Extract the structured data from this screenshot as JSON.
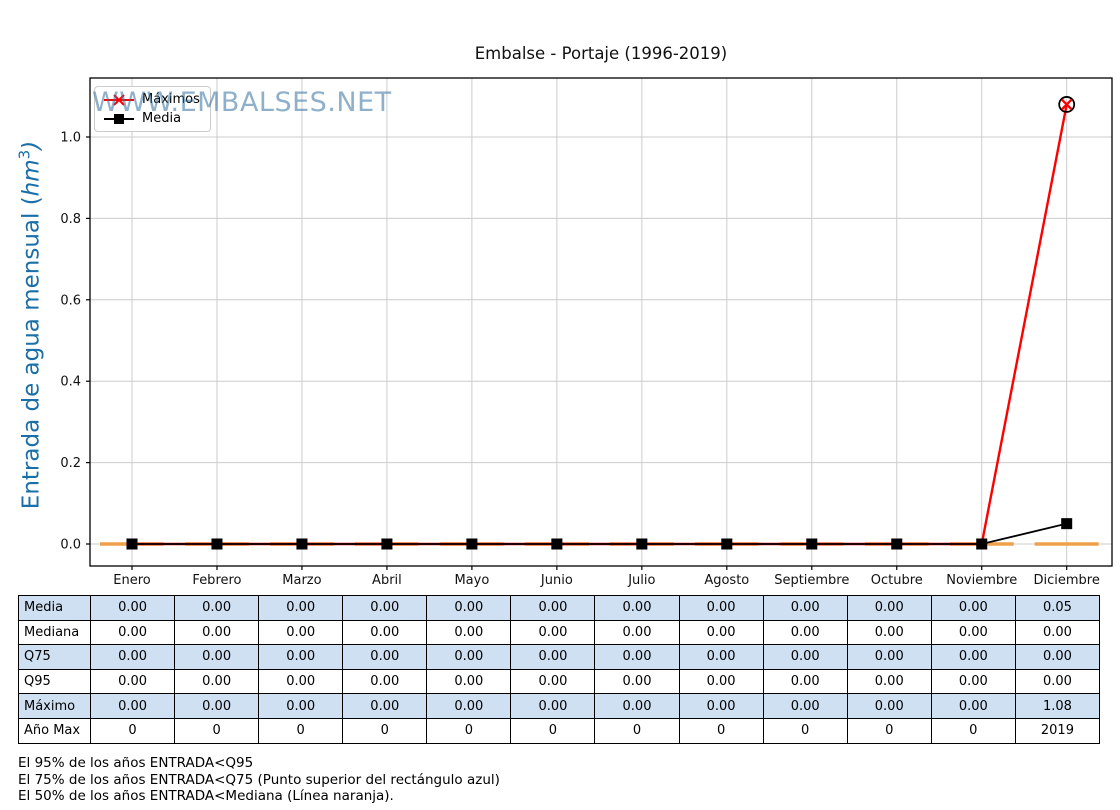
{
  "title": "Embalse - Portaje (1996-2019)",
  "watermark": "WWW.EMBALSES.NET",
  "ylabel_parts": {
    "open": "Entrada de agua mensual (",
    "unit": "hm",
    "sup": "3",
    "close": ")"
  },
  "chart_data": {
    "type": "line",
    "title": "Embalse - Portaje (1996-2019)",
    "xlabel": "",
    "ylabel": "Entrada de agua mensual (hm³)",
    "categories": [
      "Enero",
      "Febrero",
      "Marzo",
      "Abril",
      "Mayo",
      "Junio",
      "Julio",
      "Agosto",
      "Septiembre",
      "Octubre",
      "Noviembre",
      "Diciembre"
    ],
    "ytick_labels": [
      "0.0",
      "0.2",
      "0.4",
      "0.6",
      "0.8",
      "1.0"
    ],
    "yticks": [
      0.0,
      0.2,
      0.4,
      0.6,
      0.8,
      1.0
    ],
    "ylim": [
      -0.054,
      1.145
    ],
    "grid": true,
    "legend_position": "upper-left",
    "series": [
      {
        "name": "Máximos",
        "marker": "x-in-circle",
        "color": "#ff0000",
        "values": [
          0,
          0,
          0,
          0,
          0,
          0,
          0,
          0,
          0,
          0,
          0,
          1.08
        ]
      },
      {
        "name": "Media",
        "marker": "square",
        "color": "#000000",
        "values": [
          0,
          0,
          0,
          0,
          0,
          0,
          0,
          0,
          0,
          0,
          0,
          0.05
        ]
      },
      {
        "name": "Mediana",
        "marker": "dash",
        "color": "#f0a04b",
        "values": [
          0,
          0,
          0,
          0,
          0,
          0,
          0,
          0,
          0,
          0,
          0,
          0
        ]
      }
    ]
  },
  "table": {
    "rows": [
      {
        "label": "Media",
        "shaded": true,
        "values": [
          "0.00",
          "0.00",
          "0.00",
          "0.00",
          "0.00",
          "0.00",
          "0.00",
          "0.00",
          "0.00",
          "0.00",
          "0.00",
          "0.05"
        ]
      },
      {
        "label": "Mediana",
        "shaded": false,
        "values": [
          "0.00",
          "0.00",
          "0.00",
          "0.00",
          "0.00",
          "0.00",
          "0.00",
          "0.00",
          "0.00",
          "0.00",
          "0.00",
          "0.00"
        ]
      },
      {
        "label": "Q75",
        "shaded": true,
        "values": [
          "0.00",
          "0.00",
          "0.00",
          "0.00",
          "0.00",
          "0.00",
          "0.00",
          "0.00",
          "0.00",
          "0.00",
          "0.00",
          "0.00"
        ]
      },
      {
        "label": "Q95",
        "shaded": false,
        "values": [
          "0.00",
          "0.00",
          "0.00",
          "0.00",
          "0.00",
          "0.00",
          "0.00",
          "0.00",
          "0.00",
          "0.00",
          "0.00",
          "0.00"
        ]
      },
      {
        "label": "Máximo",
        "shaded": true,
        "values": [
          "0.00",
          "0.00",
          "0.00",
          "0.00",
          "0.00",
          "0.00",
          "0.00",
          "0.00",
          "0.00",
          "0.00",
          "0.00",
          "1.08"
        ]
      },
      {
        "label": "Año Max",
        "shaded": false,
        "values": [
          "0",
          "0",
          "0",
          "0",
          "0",
          "0",
          "0",
          "0",
          "0",
          "0",
          "0",
          "2019"
        ]
      }
    ],
    "shaded_color": "#cfe0f3"
  },
  "notes": [
    "El 95% de los años ENTRADA<Q95",
    "El 75% de los años ENTRADA<Q75 (Punto superior del rectángulo azul)",
    "El 50% de los años ENTRADA<Mediana (Línea naranja)."
  ],
  "colors": {
    "ylabel_blue": "#1a6fa8",
    "watermark_blue": "#33719f",
    "gridline": "#cccccc",
    "table_shaded": "#cfe0f3",
    "maximos_red": "#ff0000",
    "media_black": "#000000",
    "mediana_orange": "#f0a04b"
  }
}
